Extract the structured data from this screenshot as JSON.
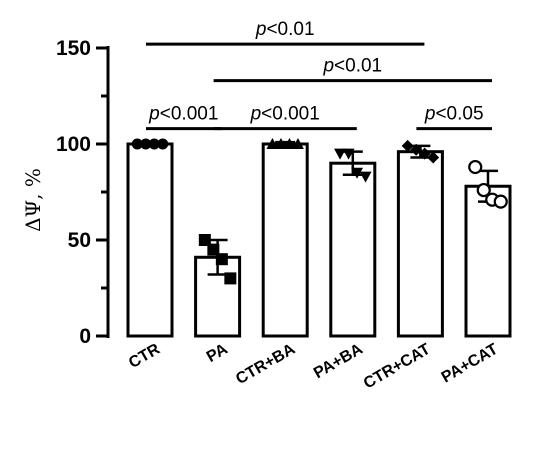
{
  "chart_data": {
    "type": "bar",
    "title": "",
    "xlabel": "",
    "ylabel": "ΔΨ, %",
    "ylim": [
      0,
      150
    ],
    "yticks": [
      0,
      50,
      100,
      150
    ],
    "grid": false,
    "colors": {
      "bar_fill": "#ffffff",
      "stroke": "#000000"
    },
    "categories": [
      "CTR",
      "PA",
      "CTR+BA",
      "PA+BA",
      "CTR+CAT",
      "PA+CAT"
    ],
    "values": [
      100,
      41,
      100,
      90,
      96,
      78
    ],
    "errors": [
      1,
      9,
      1,
      6,
      3,
      8
    ],
    "points": [
      {
        "marker": "circle",
        "values": [
          100,
          100,
          100,
          100
        ]
      },
      {
        "marker": "square",
        "values": [
          50,
          45,
          40,
          30
        ]
      },
      {
        "marker": "triangle-up",
        "values": [
          100,
          100,
          100,
          100
        ]
      },
      {
        "marker": "triangle-down",
        "values": [
          95,
          95,
          85,
          83
        ]
      },
      {
        "marker": "diamond",
        "values": [
          99,
          97,
          95,
          93
        ]
      },
      {
        "marker": "open-circle",
        "values": [
          88,
          76,
          71,
          70
        ]
      }
    ],
    "annotations": [
      {
        "groups": [
          0,
          4
        ],
        "y": 152,
        "label_prefix": "p",
        "label_value": "<0.01"
      },
      {
        "groups": [
          1,
          5
        ],
        "y": 133,
        "label_prefix": "p",
        "label_value": "<0.01"
      },
      {
        "groups": [
          0,
          1
        ],
        "y": 108,
        "label_prefix": "p",
        "label_value": "<0.001"
      },
      {
        "groups": [
          1,
          3
        ],
        "y": 108,
        "label_prefix": "p",
        "label_value": "<0.001"
      },
      {
        "groups": [
          4,
          5
        ],
        "y": 108,
        "label_prefix": "p",
        "label_value": "<0.05"
      }
    ]
  }
}
